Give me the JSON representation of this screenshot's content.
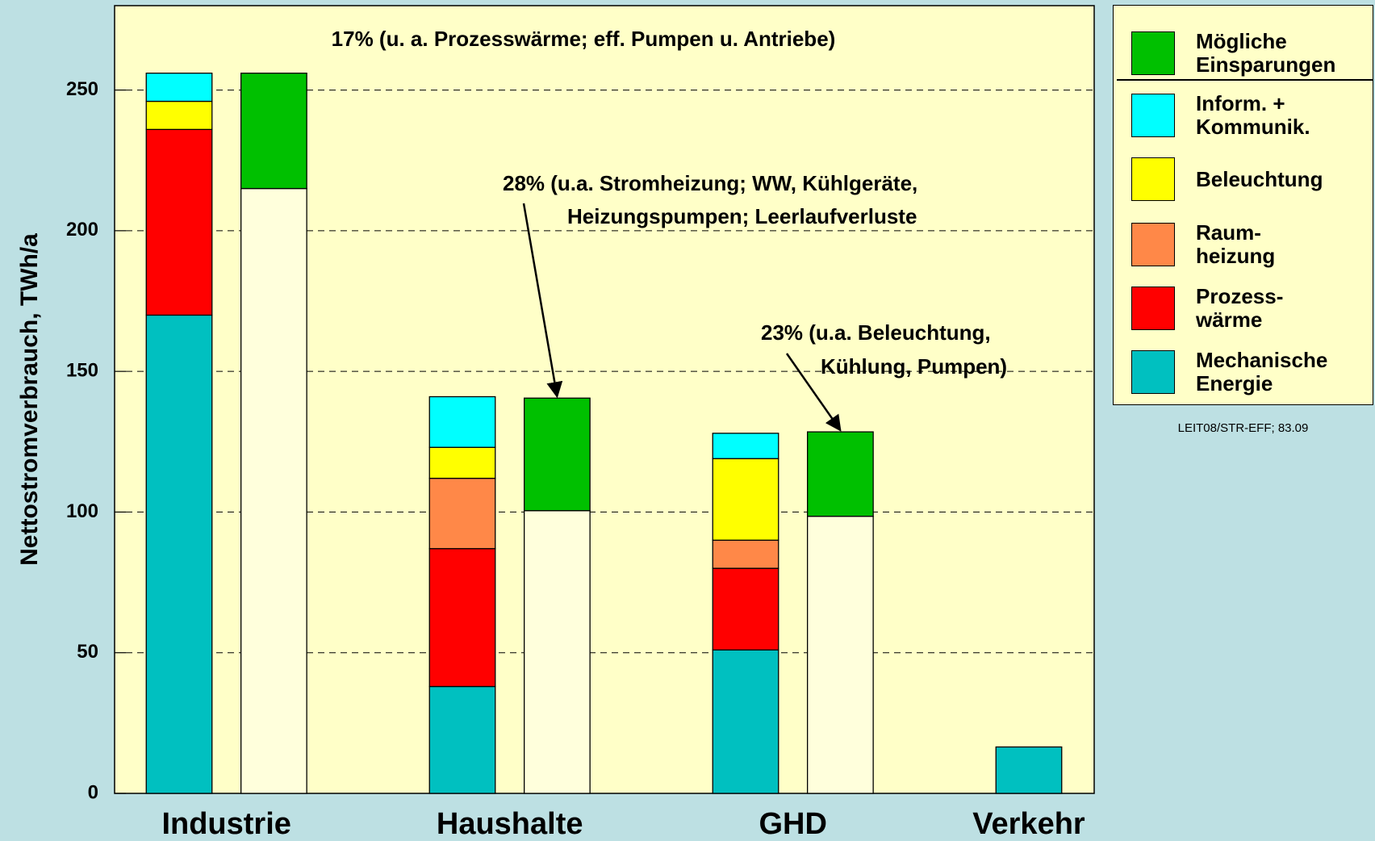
{
  "chart_data": {
    "type": "bar",
    "stacked": true,
    "categories": [
      "Industrie",
      "Haushalte",
      "GHD",
      "Verkehr"
    ],
    "series": [
      {
        "name": "Mechanische\nEnergie",
        "color": "#00c0c0",
        "stack": 0,
        "values": [
          170,
          38,
          51,
          16.5
        ]
      },
      {
        "name": "Prozess-\nwärme",
        "color": "#ff0000",
        "stack": 0,
        "values": [
          66,
          49,
          29,
          null
        ]
      },
      {
        "name": "Raum-\nheizung",
        "color": "#ff8848",
        "stack": 0,
        "values": [
          null,
          25,
          10,
          null
        ]
      },
      {
        "name": "Beleuchtung",
        "color": "#ffff00",
        "stack": 0,
        "values": [
          10,
          11,
          29,
          null
        ]
      },
      {
        "name": "Inform. +\nKommunik.",
        "color": "#00ffff",
        "stack": 0,
        "values": [
          10,
          18,
          9,
          null
        ]
      },
      {
        "color": "#ffffdc",
        "stack": 1,
        "values": [
          215,
          100.5,
          98.5,
          null
        ]
      },
      {
        "name": "Mögliche\nEinsparungen",
        "color": "#00c000",
        "stack": 1,
        "values": [
          41,
          40,
          30,
          null
        ]
      }
    ],
    "y_label": "Nettostromverbrauch, TWh/a",
    "ylim": [
      0,
      280
    ],
    "yticks": [
      0,
      50,
      100,
      150,
      200,
      250
    ],
    "grid": true,
    "annotations": [
      {
        "lines": [
          "17% (u. a. Prozesswärme; eff. Pumpen u. Antriebe)"
        ]
      },
      {
        "lines": [
          "28% (u.a. Stromheizung; WW, Kühlgeräte,",
          "Heizungspumpen; Leerlaufverluste"
        ]
      },
      {
        "lines": [
          "23% (u.a. Beleuchtung,",
          "Kühlung, Pumpen)"
        ]
      }
    ],
    "footnote": "LEIT08/STR-EFF; 83.09"
  }
}
